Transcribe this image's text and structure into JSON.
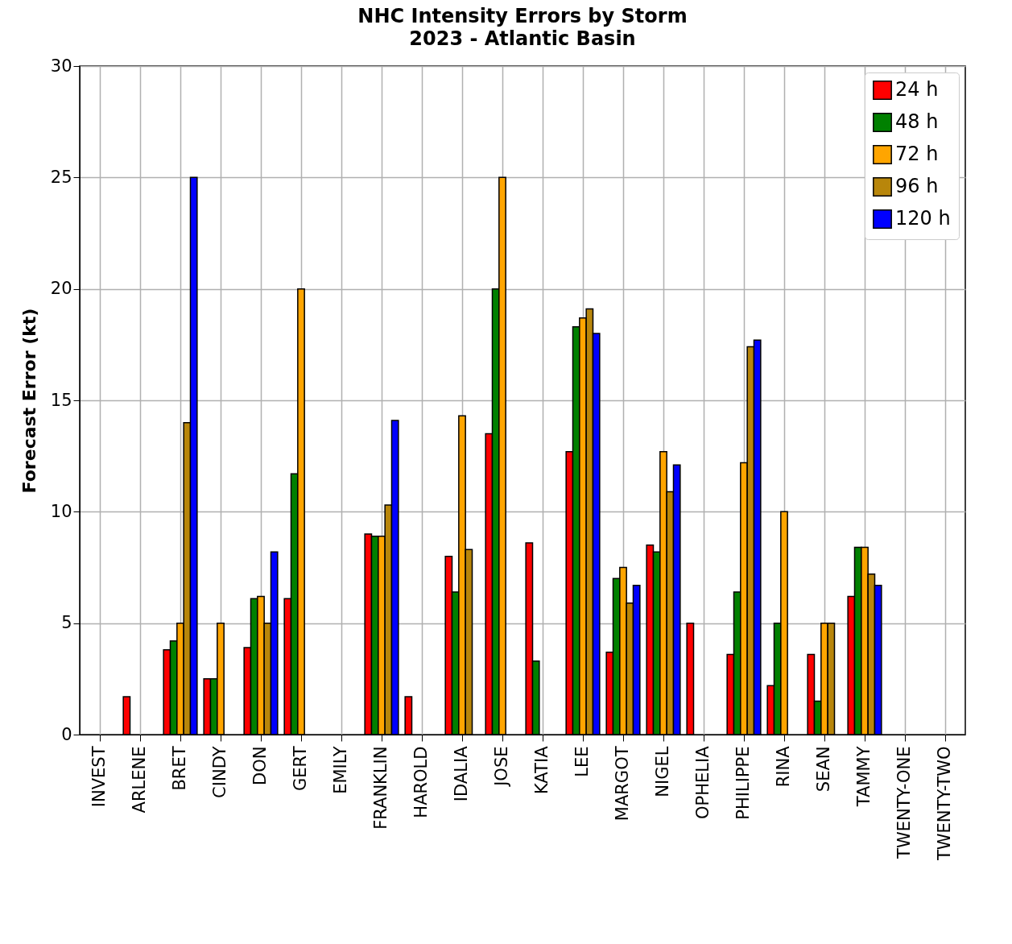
{
  "chart_data": {
    "type": "bar",
    "title": "NHC Intensity Errors by Storm",
    "subtitle": "2023 - Atlantic Basin",
    "ylabel": "Forecast Error (kt)",
    "categories": [
      "INVEST",
      "ARLENE",
      "BRET",
      "CINDY",
      "DON",
      "GERT",
      "EMILY",
      "FRANKLIN",
      "HAROLD",
      "IDALIA",
      "JOSE",
      "KATIA",
      "LEE",
      "MARGOT",
      "NIGEL",
      "OPHELIA",
      "PHILIPPE",
      "RINA",
      "SEAN",
      "TAMMY",
      "TWENTY-ONE",
      "TWENTY-TWO"
    ],
    "series": [
      {
        "name": "24 h",
        "color": "#ff0000",
        "values": [
          null,
          1.7,
          3.8,
          2.5,
          3.9,
          6.1,
          null,
          9.0,
          1.7,
          8.0,
          13.5,
          8.6,
          12.7,
          3.7,
          8.5,
          5.0,
          3.6,
          2.2,
          3.6,
          6.2,
          null,
          null
        ]
      },
      {
        "name": "48 h",
        "color": "#008000",
        "values": [
          null,
          null,
          4.2,
          2.5,
          6.1,
          11.7,
          null,
          8.9,
          null,
          6.4,
          20.0,
          3.3,
          18.3,
          7.0,
          8.2,
          null,
          6.4,
          5.0,
          1.5,
          8.4,
          null,
          null
        ]
      },
      {
        "name": "72 h",
        "color": "#ffa500",
        "values": [
          null,
          null,
          5.0,
          5.0,
          6.2,
          20.0,
          null,
          8.9,
          null,
          14.3,
          25.0,
          null,
          18.7,
          7.5,
          12.7,
          null,
          12.2,
          10.0,
          5.0,
          8.4,
          null,
          null
        ]
      },
      {
        "name": "96 h",
        "color": "#b8860b",
        "values": [
          null,
          null,
          14.0,
          null,
          5.0,
          null,
          null,
          10.3,
          null,
          8.3,
          null,
          null,
          19.1,
          5.9,
          10.9,
          null,
          17.4,
          null,
          5.0,
          7.2,
          null,
          null
        ]
      },
      {
        "name": "120 h",
        "color": "#0000ff",
        "values": [
          null,
          null,
          25.0,
          null,
          8.2,
          null,
          null,
          14.1,
          null,
          null,
          null,
          null,
          18.0,
          6.7,
          12.1,
          null,
          17.7,
          null,
          null,
          6.7,
          null,
          null
        ]
      }
    ],
    "ylim": [
      0,
      30
    ],
    "yticks": [
      0,
      5,
      10,
      15,
      20,
      25,
      30
    ],
    "grid": true,
    "legend": "top right"
  }
}
